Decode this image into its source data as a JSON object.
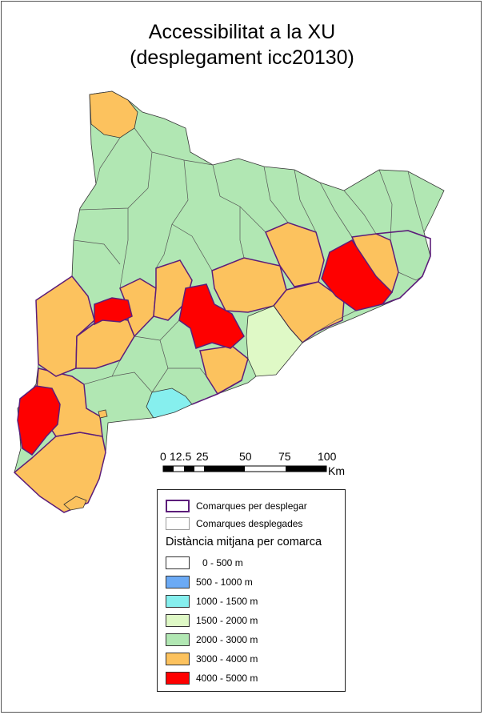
{
  "title": {
    "line1": "Accessibilitat a la XU",
    "line2": "(desplegament icc20130)"
  },
  "scale": {
    "labels": [
      "0",
      "12.5",
      "25",
      "50",
      "75",
      "100"
    ],
    "unit": "Km"
  },
  "legend": {
    "boundaries": [
      {
        "label": "Comarques per desplegar",
        "color": "#5c1d7a"
      },
      {
        "label": "Comarques desplegades",
        "color": "#9a9a9a"
      }
    ],
    "heading": "Distància mitjana per comarca",
    "classes": [
      {
        "label": "0 -  500 m",
        "color": "#ffffff"
      },
      {
        "label": "500 - 1000 m",
        "color": "#6baaf5"
      },
      {
        "label": "1000 - 1500 m",
        "color": "#86efee"
      },
      {
        "label": "1500 - 2000 m",
        "color": "#dff9c6"
      },
      {
        "label": "2000 - 3000 m",
        "color": "#b1e7b3"
      },
      {
        "label": "3000 - 4000 m",
        "color": "#fcc25e"
      },
      {
        "label": "4000 - 5000 m",
        "color": "#fe0000"
      }
    ]
  }
}
